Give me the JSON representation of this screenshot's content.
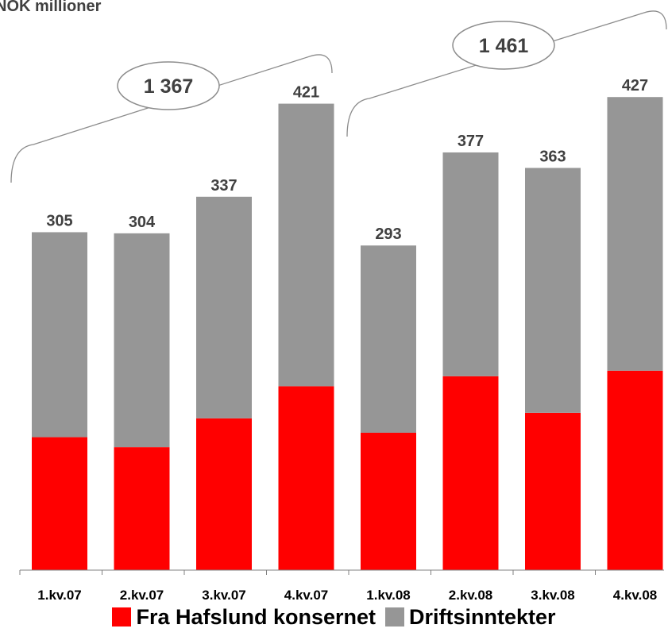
{
  "header_text": "NOK millioner",
  "chart_data": {
    "type": "bar",
    "stacked": true,
    "categories": [
      "1.kv.07",
      "2.kv.07",
      "3.kv.07",
      "4.kv.07",
      "1.kv.08",
      "2.kv.08",
      "3.kv.08",
      "4.kv.08"
    ],
    "series": [
      {
        "name": "Fra Hafslund konsernet",
        "color": "#ff0000",
        "values": [
          120,
          111,
          137,
          166,
          124,
          175,
          142,
          180
        ]
      },
      {
        "name": "Driftsinntekter",
        "color": "#969696",
        "values": [
          185,
          193,
          200,
          255,
          169,
          202,
          221,
          247
        ]
      }
    ],
    "totals": [
      "305",
      "304",
      "337",
      "421",
      "293",
      "377",
      "363",
      "427"
    ],
    "group_totals": [
      {
        "label": "1 367",
        "categories": [
          "1.kv.07",
          "2.kv.07",
          "3.kv.07",
          "4.kv.07"
        ]
      },
      {
        "label": "1 461",
        "categories": [
          "1.kv.08",
          "2.kv.08",
          "3.kv.08",
          "4.kv.08"
        ]
      }
    ],
    "ylim": [
      0,
      468
    ],
    "grid": false,
    "legend_position": "bottom"
  }
}
